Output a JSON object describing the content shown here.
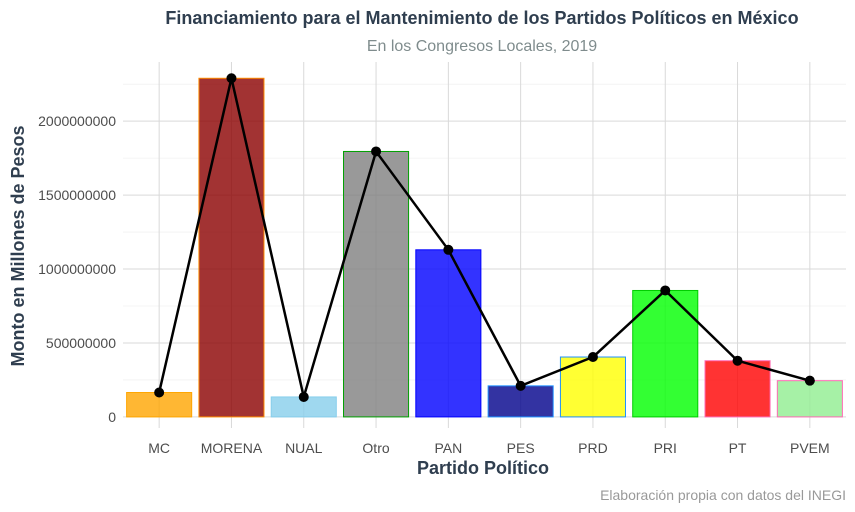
{
  "chart_data": {
    "type": "bar",
    "title": "Financiamiento para el Mantenimiento de los Partidos Políticos en México",
    "subtitle": "En los Congresos Locales, 2019",
    "xlabel": "Partido Político",
    "ylabel": "Monto en Millones de Pesos",
    "caption": "Elaboración propia con datos del INEGI",
    "categories": [
      "MC",
      "MORENA",
      "NUAL",
      "Otro",
      "PAN",
      "PES",
      "PRD",
      "PRI",
      "PT",
      "PVEM"
    ],
    "values": [
      165000000,
      2290000000,
      135000000,
      1795000000,
      1130000000,
      210000000,
      405000000,
      855000000,
      380000000,
      245000000
    ],
    "yticks": [
      0,
      500000000,
      1000000000,
      1500000000,
      2000000000
    ],
    "ytick_labels": [
      "0",
      "500000000",
      "1000000000",
      "1500000000",
      "2000000000"
    ],
    "ylim": [
      -75000000,
      2400000000
    ],
    "grid": true,
    "overlay": "line-with-points",
    "bar_fills": [
      "#ffa500",
      "#8b0000",
      "#87ceeb",
      "#808080",
      "#0000ff",
      "#00008b",
      "#ffff00",
      "#00ff00",
      "#ff0000",
      "#90ee90"
    ],
    "bar_borders": [
      "#ffa500",
      "#ff8c00",
      "#87ceeb",
      "#00a000",
      "#0000ff",
      "#1e90ff",
      "#1e90ff",
      "#00cd00",
      "#ff69b4",
      "#ff69b4"
    ],
    "line_color": "#000000"
  }
}
